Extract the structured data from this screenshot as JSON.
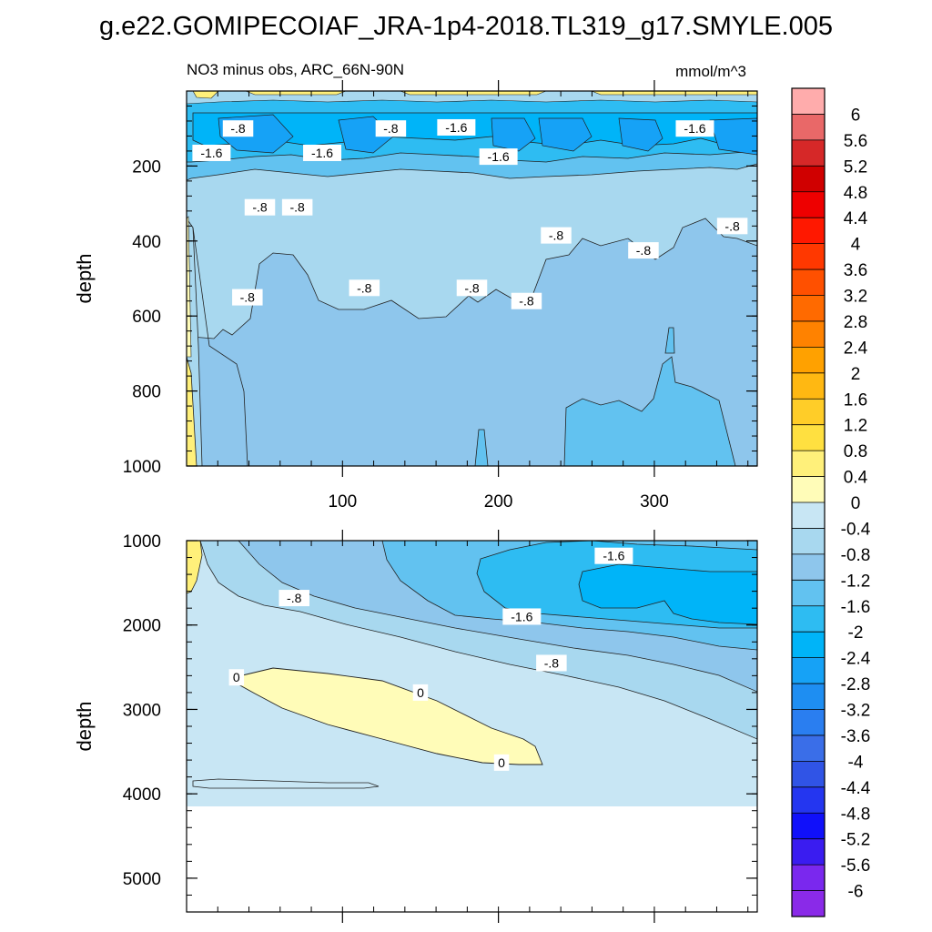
{
  "title": "g.e22.GOMIPECOIAF_JRA-1p4-2018.TL319_g17.SMYLE.005",
  "chart_data": {
    "type": "heatmap",
    "panels": [
      {
        "id": "upper",
        "left_label": "NO3 minus obs, ARC_66N-90N",
        "right_label": "mmol/m^3",
        "ylabel": "depth",
        "xlabel": "",
        "xlim": [
          0,
          366
        ],
        "ylim": [
          1000,
          0
        ],
        "xticks": [
          100,
          200,
          300
        ],
        "yticks": [
          200,
          400,
          600,
          800,
          1000
        ],
        "contour_labels": [
          {
            "text": "-.8",
            "x": 33,
            "y": 100
          },
          {
            "text": "-.8",
            "x": 131,
            "y": 100
          },
          {
            "text": "-1.6",
            "x": 173,
            "y": 97
          },
          {
            "text": "-1.6",
            "x": 326,
            "y": 100
          },
          {
            "text": "-1.6",
            "x": 16,
            "y": 165
          },
          {
            "text": "-1.6",
            "x": 87,
            "y": 165
          },
          {
            "text": "-1.6",
            "x": 200,
            "y": 175
          },
          {
            "text": "-.8",
            "x": 47,
            "y": 310
          },
          {
            "text": "-.8",
            "x": 71,
            "y": 310
          },
          {
            "text": "-.8",
            "x": 237,
            "y": 385
          },
          {
            "text": "-.8",
            "x": 293,
            "y": 425
          },
          {
            "text": "-.8",
            "x": 350,
            "y": 360
          },
          {
            "text": "-.8",
            "x": 39,
            "y": 550
          },
          {
            "text": "-.8",
            "x": 114,
            "y": 525
          },
          {
            "text": "-.8",
            "x": 183,
            "y": 525
          },
          {
            "text": "-.8",
            "x": 218,
            "y": 560
          }
        ]
      },
      {
        "id": "lower",
        "ylabel": "depth",
        "xlabel": "",
        "xlim": [
          0,
          366
        ],
        "ylim": [
          5400,
          1000
        ],
        "xticks": [
          100,
          200,
          300
        ],
        "yticks": [
          1000,
          2000,
          3000,
          4000,
          5000
        ],
        "data_bottom_depth": 4120,
        "contour_labels": [
          {
            "text": "-1.6",
            "x": 274,
            "y": 1180
          },
          {
            "text": "-.8",
            "x": 69,
            "y": 1680
          },
          {
            "text": "-1.6",
            "x": 215,
            "y": 1900
          },
          {
            "text": "-.8",
            "x": 234,
            "y": 2450
          },
          {
            "text": "0",
            "x": 32,
            "y": 2620
          },
          {
            "text": "0",
            "x": 150,
            "y": 2800
          },
          {
            "text": "0",
            "x": 202,
            "y": 3630
          }
        ]
      }
    ],
    "colorbar": {
      "labels": [
        "6",
        "5.6",
        "5.2",
        "4.8",
        "4.4",
        "4",
        "3.6",
        "3.2",
        "2.8",
        "2.4",
        "2",
        "1.6",
        "1.2",
        "0.8",
        "0.4",
        "0",
        "-0.4",
        "-0.8",
        "-1.2",
        "-1.6",
        "-2",
        "-2.4",
        "-2.8",
        "-3.2",
        "-3.6",
        "-4",
        "-4.4",
        "-4.8",
        "-5.2",
        "-5.6",
        "-6"
      ],
      "colors": [
        "#ffacac",
        "#e96868",
        "#d62828",
        "#d00000",
        "#ee0000",
        "#ff1800",
        "#ff3800",
        "#ff5000",
        "#ff6a00",
        "#ff8200",
        "#ffa100",
        "#ffb812",
        "#ffcd28",
        "#ffe040",
        "#fff07a",
        "#fffcb8",
        "#c8e6f4",
        "#a8d8ef",
        "#8ec6ec",
        "#62c2f0",
        "#2ebcf2",
        "#00b4f8",
        "#16a2f6",
        "#1e8ef2",
        "#2a7ef0",
        "#3a6ee8",
        "#3054e6",
        "#2436f0",
        "#1010fa",
        "#3a1cf0",
        "#7a28ee",
        "#8a2ae8"
      ]
    }
  }
}
